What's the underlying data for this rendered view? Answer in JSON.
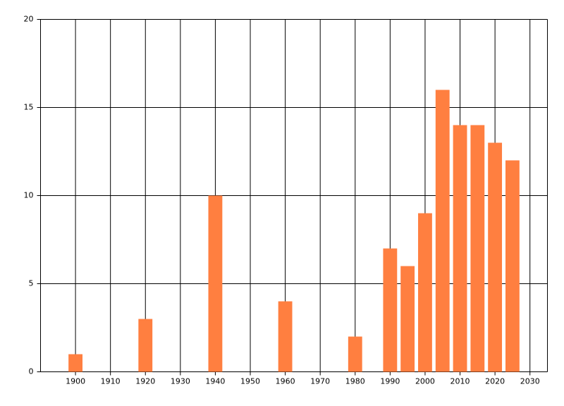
{
  "chart_data": {
    "type": "bar",
    "x": [
      1900,
      1920,
      1940,
      1960,
      1980,
      1990,
      1995,
      2000,
      2005,
      2010,
      2015,
      2020,
      2025
    ],
    "values": [
      1,
      3,
      10,
      4,
      2,
      7,
      6,
      9,
      16,
      14,
      14,
      13,
      12
    ],
    "color": "#ff7f40",
    "xlim": [
      1890,
      2035
    ],
    "xticks": [
      1900,
      1910,
      1920,
      1930,
      1940,
      1950,
      1960,
      1970,
      1980,
      1990,
      2000,
      2010,
      2020,
      2030
    ],
    "ylim": [
      0,
      20
    ],
    "yticks": [
      0,
      5,
      10,
      15,
      20
    ],
    "grid": true
  }
}
